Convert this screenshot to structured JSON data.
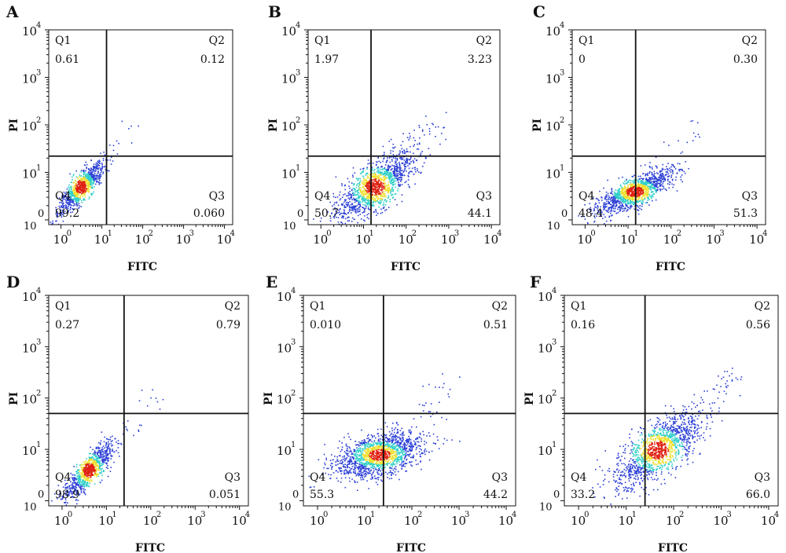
{
  "chart_data": [
    {
      "type": "scatter",
      "panel_label": "A",
      "xlabel": "FITC",
      "ylabel": "PI",
      "x_ticks": [
        "10",
        "10",
        "10",
        "10",
        "10"
      ],
      "x_tick_exponents": [
        "0",
        "1",
        "2",
        "3",
        "4"
      ],
      "y_ticks": [
        "10",
        "10",
        "10",
        "10"
      ],
      "y_tick_exponents": [
        "1",
        "2",
        "3",
        "4"
      ],
      "y_zero_label": "0",
      "quadrants": [
        {
          "name": "Q1",
          "value": "0.61"
        },
        {
          "name": "Q2",
          "value": "0.12"
        },
        {
          "name": "Q3",
          "value": "0.060"
        },
        {
          "name": "Q4",
          "value": "99.2"
        }
      ],
      "gate_x": 13,
      "gate_y": 22,
      "population_center": [
        3,
        5
      ],
      "population_spread": "tight-diagonal"
    },
    {
      "type": "scatter",
      "panel_label": "B",
      "xlabel": "FITC",
      "ylabel": "PI",
      "x_ticks": [
        "10",
        "10",
        "10",
        "10",
        "10"
      ],
      "x_tick_exponents": [
        "0",
        "1",
        "2",
        "3",
        "4"
      ],
      "y_ticks": [
        "10",
        "10",
        "10",
        "10"
      ],
      "y_tick_exponents": [
        "1",
        "2",
        "3",
        "4"
      ],
      "y_zero_label": "0",
      "quadrants": [
        {
          "name": "Q1",
          "value": "1.97"
        },
        {
          "name": "Q2",
          "value": "3.23"
        },
        {
          "name": "Q3",
          "value": "44.1"
        },
        {
          "name": "Q4",
          "value": "50.7"
        }
      ],
      "gate_x": 15,
      "gate_y": 22,
      "population_center": [
        18,
        5
      ],
      "population_spread": "wide-diagonal"
    },
    {
      "type": "scatter",
      "panel_label": "C",
      "xlabel": "FITC",
      "ylabel": "PI",
      "x_ticks": [
        "10",
        "10",
        "10",
        "10",
        "10"
      ],
      "x_tick_exponents": [
        "0",
        "1",
        "2",
        "3",
        "4"
      ],
      "y_ticks": [
        "10",
        "10",
        "10",
        "10"
      ],
      "y_tick_exponents": [
        "1",
        "2",
        "3",
        "4"
      ],
      "y_zero_label": "0",
      "quadrants": [
        {
          "name": "Q1",
          "value": "0"
        },
        {
          "name": "Q2",
          "value": "0.30"
        },
        {
          "name": "Q3",
          "value": "51.3"
        },
        {
          "name": "Q4",
          "value": "48.4"
        }
      ],
      "gate_x": 15,
      "gate_y": 22,
      "population_center": [
        14,
        4
      ],
      "population_spread": "elongated"
    },
    {
      "type": "scatter",
      "panel_label": "D",
      "xlabel": "FITC",
      "ylabel": "PI",
      "x_ticks": [
        "10",
        "10",
        "10",
        "10",
        "10"
      ],
      "x_tick_exponents": [
        "0",
        "1",
        "2",
        "3",
        "4"
      ],
      "y_ticks": [
        "10",
        "10",
        "10",
        "10"
      ],
      "y_tick_exponents": [
        "1",
        "2",
        "3",
        "4"
      ],
      "y_zero_label": "0",
      "quadrants": [
        {
          "name": "Q1",
          "value": "0.27"
        },
        {
          "name": "Q2",
          "value": "0.79"
        },
        {
          "name": "Q3",
          "value": "0.051"
        },
        {
          "name": "Q4",
          "value": "98.9"
        }
      ],
      "gate_x": 25,
      "gate_y": 50,
      "population_center": [
        4,
        4
      ],
      "population_spread": "tight-diagonal"
    },
    {
      "type": "scatter",
      "panel_label": "E",
      "xlabel": "FITC",
      "ylabel": "PI",
      "x_ticks": [
        "10",
        "10",
        "10",
        "10",
        "10"
      ],
      "x_tick_exponents": [
        "0",
        "1",
        "2",
        "3",
        "4"
      ],
      "y_ticks": [
        "10",
        "10",
        "10",
        "10"
      ],
      "y_tick_exponents": [
        "1",
        "2",
        "3",
        "4"
      ],
      "y_zero_label": "0",
      "quadrants": [
        {
          "name": "Q1",
          "value": "0.010"
        },
        {
          "name": "Q2",
          "value": "0.51"
        },
        {
          "name": "Q3",
          "value": "44.2"
        },
        {
          "name": "Q4",
          "value": "55.3"
        }
      ],
      "gate_x": 25,
      "gate_y": 50,
      "population_center": [
        20,
        8
      ],
      "population_spread": "wide-blob"
    },
    {
      "type": "scatter",
      "panel_label": "F",
      "xlabel": "FITC",
      "ylabel": "PI",
      "x_ticks": [
        "10",
        "10",
        "10",
        "10",
        "10"
      ],
      "x_tick_exponents": [
        "0",
        "1",
        "2",
        "3",
        "4"
      ],
      "y_ticks": [
        "10",
        "10",
        "10",
        "10"
      ],
      "y_tick_exponents": [
        "1",
        "2",
        "3",
        "4"
      ],
      "y_zero_label": "0",
      "quadrants": [
        {
          "name": "Q1",
          "value": "0.16"
        },
        {
          "name": "Q2",
          "value": "0.56"
        },
        {
          "name": "Q3",
          "value": "66.0"
        },
        {
          "name": "Q4",
          "value": "33.2"
        }
      ],
      "gate_x": 25,
      "gate_y": 50,
      "population_center": [
        45,
        10
      ],
      "population_spread": "wide-diagonal"
    }
  ],
  "colors": {
    "axis": "#111111",
    "gate_line": "#111111",
    "density_low": "#2b3fd6",
    "density_mid": "#2fd0c8",
    "density_high": "#f0e030",
    "density_peak": "#e02010"
  }
}
